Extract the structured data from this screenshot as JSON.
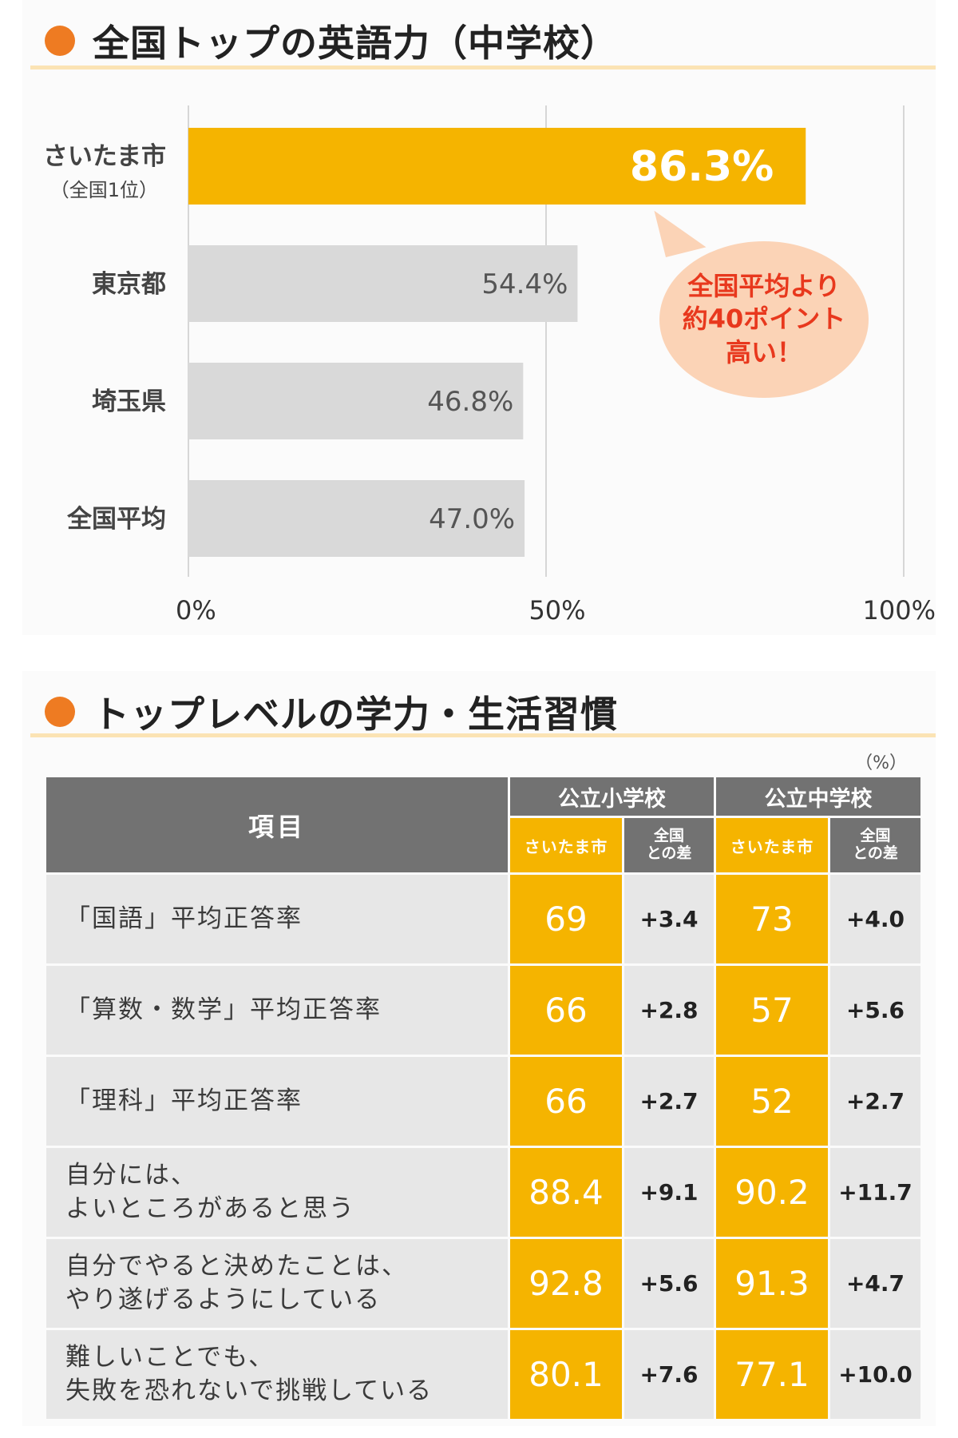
{
  "section1": {
    "title": "全国トップの英語力（中学校）"
  },
  "chart_data": {
    "type": "bar",
    "orientation": "horizontal",
    "categories": [
      {
        "name": "さいたま市",
        "note": "（全国1位）"
      },
      {
        "name": "東京都",
        "note": ""
      },
      {
        "name": "埼玉県",
        "note": ""
      },
      {
        "name": "全国平均",
        "note": ""
      }
    ],
    "values": [
      86.3,
      54.4,
      46.8,
      47.0
    ],
    "value_labels": [
      "86.3%",
      "54.4%",
      "46.8%",
      "47.0%"
    ],
    "highlight_index": 0,
    "xlim": [
      0,
      100
    ],
    "xticks": [
      0,
      50,
      100
    ],
    "xtick_labels": [
      "0%",
      "50%",
      "100%"
    ],
    "grid": true,
    "annotation": [
      "全国平均より",
      "約40ポイント",
      "高い！"
    ],
    "colors": {
      "highlight": "#f5b400",
      "base": "#d9d9d9",
      "highlight_label": "#ffffff",
      "base_label": "#555555",
      "annotation_text": "#e8381d",
      "annotation_bg": "#fbd3b6"
    }
  },
  "section2": {
    "title": "トップレベルの学力・生活習慣",
    "unit": "（%）",
    "header": {
      "item": "項目",
      "groups": [
        "公立小学校",
        "公立中学校"
      ],
      "city": "さいたま市",
      "diff": [
        "全国",
        "との差"
      ]
    },
    "rows": [
      {
        "item": [
          "「国語」平均正答率"
        ],
        "elem": "69",
        "elem_diff": "+3.4",
        "mid": "73",
        "mid_diff": "+4.0"
      },
      {
        "item": [
          "「算数・数学」平均正答率"
        ],
        "elem": "66",
        "elem_diff": "+2.8",
        "mid": "57",
        "mid_diff": "+5.6"
      },
      {
        "item": [
          "「理科」平均正答率"
        ],
        "elem": "66",
        "elem_diff": "+2.7",
        "mid": "52",
        "mid_diff": "+2.7"
      },
      {
        "item": [
          "自分には、",
          "よいところがあると思う"
        ],
        "elem": "88.4",
        "elem_diff": "+9.1",
        "mid": "90.2",
        "mid_diff": "+11.7"
      },
      {
        "item": [
          "自分でやると決めたことは、",
          "やり遂げるようにしている"
        ],
        "elem": "92.8",
        "elem_diff": "+5.6",
        "mid": "91.3",
        "mid_diff": "+4.7"
      },
      {
        "item": [
          "難しいことでも、",
          "失敗を恐れないで挑戦している"
        ],
        "elem": "80.1",
        "elem_diff": "+7.6",
        "mid": "77.1",
        "mid_diff": "+10.0"
      }
    ]
  }
}
